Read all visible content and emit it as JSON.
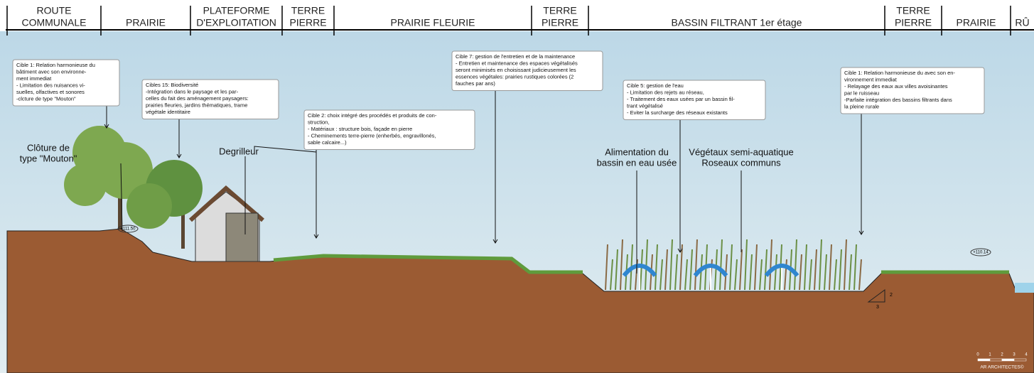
{
  "header": {
    "zones": [
      [
        "ROUTE",
        "COMMUNALE"
      ],
      [
        "PRAIRIE"
      ],
      [
        "PLATEFORME",
        "D'EXPLOITATION"
      ],
      [
        "TERRE",
        "PIERRE"
      ],
      [
        "PRAIRIE FLEURIE"
      ],
      [
        "TERRE",
        "PIERRE"
      ],
      [
        "BASSIN FILTRANT 1er étage"
      ],
      [
        "TERRE",
        "PIERRE"
      ],
      [
        "PRAIRIE"
      ],
      [
        "RÛ"
      ]
    ]
  },
  "annotations": [
    {
      "lines": [
        "Cible 1: Relation harmonieuse du",
        "bâtiment avec son environne-",
        "ment immediat",
        "- Limitation des nuisances vi-",
        "suelles, olfactives et sonores",
        "-clcture de type \"Mouton\""
      ]
    },
    {
      "lines": [
        "Cibles 15: Biodiversité",
        "-Intégration dans le paysage et les par-",
        "celles du fait des aménagement paysagers:",
        "prairies fleuries, jardins thématiques, trame",
        "végétale identitaire"
      ]
    },
    {
      "lines": [
        "Cible 2: choix intégré des procédés et produits de con-",
        "struction,",
        "- Matériaux : structure bois, façade en pierre",
        "- Cheminements terre-pierre  (enherbés, engravillonés,",
        "sable calcaire...)"
      ]
    },
    {
      "lines": [
        "Cible 7: gestion de l'entretien et de la maintenance",
        "- Entretien et maintenance des espaces végétalisés",
        "seront minimisés en choisissant judicieusement les",
        "essences végétales: prairies rustiques colorées (2",
        "fauches par ans)"
      ]
    },
    {
      "lines": [
        "Cible 5: gestion de l'eau",
        "- Limitation des rejets au réseau,",
        "- Traitement des eaux usées par un bassin fil-",
        "trant végétalisé",
        "- Eviter la surcharge des réseaux existants"
      ]
    },
    {
      "lines": [
        "Cible 1: Relation harmonieuse du avec son en-",
        "vironnement immediat",
        "- Relayage des eaux aux villes avoisinantes",
        "par le ruisseau",
        "-Parfaite intégration des bassins filtrants dans",
        "la pleine rurale"
      ]
    }
  ],
  "labels": [
    {
      "lines": [
        "Clôture de",
        "type \"Mouton\""
      ]
    },
    {
      "lines": [
        "Degrilleur"
      ]
    },
    {
      "lines": [
        "Alimentation du",
        "bassin en eau usée"
      ]
    },
    {
      "lines": [
        "Végétaux semi-aquatique",
        "Roseaux communs"
      ]
    }
  ],
  "levels": [
    "+111.50",
    "+110.14"
  ],
  "slope": [
    "2",
    "3"
  ],
  "scale": {
    "ticks": [
      "0",
      "1",
      "2",
      "3",
      "4"
    ],
    "credit": "AR ARCHITECTES©"
  }
}
